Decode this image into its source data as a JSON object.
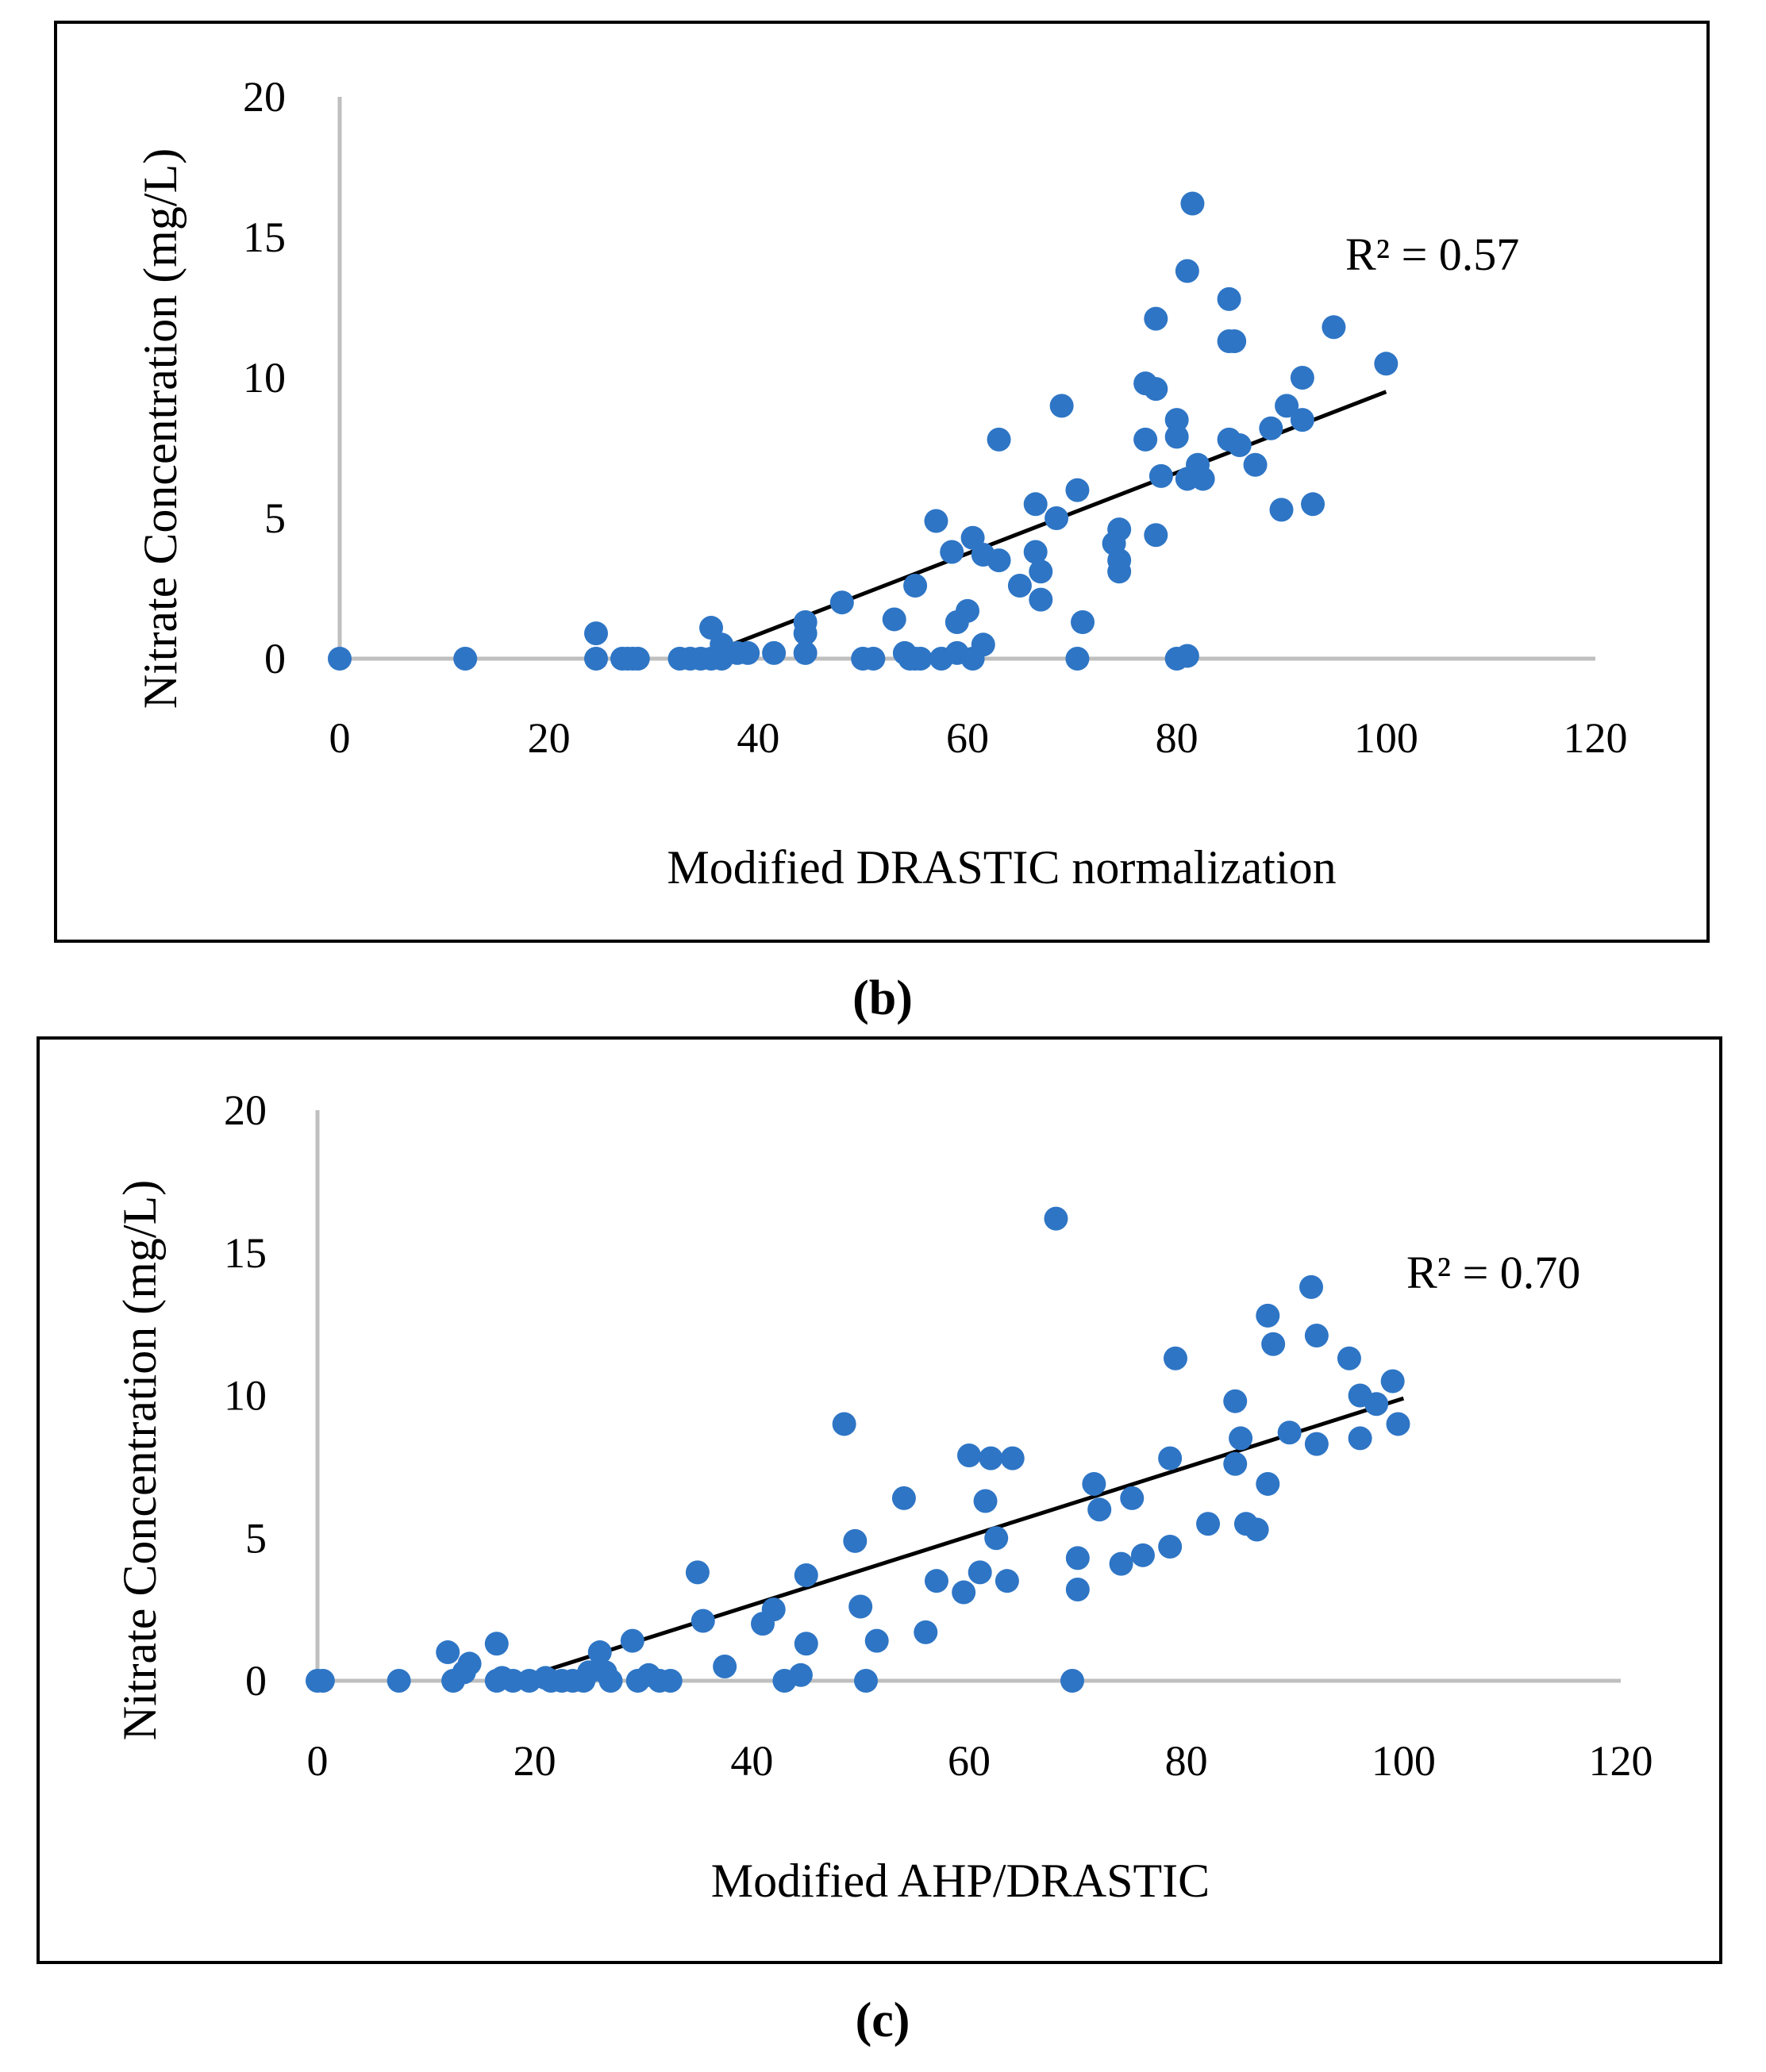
{
  "chart_data": [
    {
      "type": "scatter",
      "panel_label": "(b)",
      "xlabel": "Modified DRASTIC normalization",
      "ylabel": "Nitrate Concentration (mg/L)",
      "xlim": [
        0,
        120
      ],
      "ylim": [
        0,
        20
      ],
      "xticks": [
        0,
        20,
        40,
        60,
        80,
        100,
        120
      ],
      "yticks": [
        0,
        5,
        10,
        15,
        20
      ],
      "gridlines": false,
      "marker_color": "#2E75C5",
      "trendline": {
        "label": "R² = 0.57",
        "x": [
          34,
          100
        ],
        "y": [
          0.0,
          9.5
        ],
        "color": "#000000"
      },
      "points": [
        [
          0,
          0
        ],
        [
          12,
          0
        ],
        [
          24.5,
          0.9
        ],
        [
          24.5,
          0
        ],
        [
          27,
          0
        ],
        [
          27.5,
          0
        ],
        [
          28,
          0
        ],
        [
          28.5,
          0
        ],
        [
          32.5,
          0
        ],
        [
          33.5,
          0
        ],
        [
          34.5,
          0
        ],
        [
          35.5,
          1.1
        ],
        [
          35.5,
          0
        ],
        [
          36.5,
          0.5
        ],
        [
          36.5,
          0
        ],
        [
          37,
          0.2
        ],
        [
          38,
          0.2
        ],
        [
          39,
          0.2
        ],
        [
          41.5,
          0.2
        ],
        [
          44.5,
          1.3
        ],
        [
          44.5,
          0.9
        ],
        [
          44.5,
          0.2
        ],
        [
          48,
          2.0
        ],
        [
          50,
          0
        ],
        [
          51,
          0
        ],
        [
          53,
          1.4
        ],
        [
          54,
          0.2
        ],
        [
          54.5,
          0
        ],
        [
          55,
          0
        ],
        [
          55,
          2.6
        ],
        [
          55.5,
          0
        ],
        [
          57,
          4.9
        ],
        [
          57.5,
          0
        ],
        [
          58.5,
          3.8
        ],
        [
          59,
          1.3
        ],
        [
          59,
          0.2
        ],
        [
          60,
          1.7
        ],
        [
          60.5,
          0
        ],
        [
          60.5,
          4.3
        ],
        [
          61.5,
          3.7
        ],
        [
          61.5,
          0.5
        ],
        [
          63,
          7.8
        ],
        [
          63,
          3.5
        ],
        [
          65,
          2.6
        ],
        [
          66.5,
          5.5
        ],
        [
          66.5,
          3.8
        ],
        [
          67,
          2.1
        ],
        [
          67,
          3.1
        ],
        [
          68.5,
          5.0
        ],
        [
          69,
          9.0
        ],
        [
          70.5,
          6.0
        ],
        [
          70.5,
          0
        ],
        [
          71,
          1.3
        ],
        [
          74,
          4.1
        ],
        [
          74.5,
          4.6
        ],
        [
          74.5,
          3.5
        ],
        [
          74.5,
          3.1
        ],
        [
          77,
          9.8
        ],
        [
          77,
          7.8
        ],
        [
          78,
          12.1
        ],
        [
          78,
          9.6
        ],
        [
          78,
          4.4
        ],
        [
          78.5,
          6.5
        ],
        [
          80,
          8.5
        ],
        [
          80,
          7.9
        ],
        [
          80,
          0
        ],
        [
          81,
          13.8
        ],
        [
          81,
          6.4
        ],
        [
          81,
          0.1
        ],
        [
          81.5,
          16.2
        ],
        [
          82,
          6.9
        ],
        [
          82.5,
          6.4
        ],
        [
          85,
          12.8
        ],
        [
          85,
          11.3
        ],
        [
          85,
          7.8
        ],
        [
          85.5,
          11.3
        ],
        [
          86,
          7.6
        ],
        [
          87.5,
          6.9
        ],
        [
          89,
          8.2
        ],
        [
          90,
          5.3
        ],
        [
          90.5,
          9.0
        ],
        [
          92,
          10.0
        ],
        [
          92,
          8.5
        ],
        [
          93,
          5.5
        ],
        [
          95,
          11.8
        ],
        [
          100,
          10.5
        ]
      ]
    },
    {
      "type": "scatter",
      "panel_label": "(c)",
      "xlabel": "Modified AHP/DRASTIC",
      "ylabel": "Nitrate Concentration (mg/L)",
      "xlim": [
        0,
        120
      ],
      "ylim": [
        0,
        20
      ],
      "xticks": [
        0,
        20,
        40,
        60,
        80,
        100,
        120
      ],
      "yticks": [
        0,
        5,
        10,
        15,
        20
      ],
      "gridlines": false,
      "marker_color": "#2E75C5",
      "trendline": {
        "label": "R² = 0.70",
        "x": [
          18,
          100
        ],
        "y": [
          0.0,
          9.9
        ],
        "color": "#000000"
      },
      "points": [
        [
          0,
          0
        ],
        [
          0.5,
          0
        ],
        [
          7.5,
          0
        ],
        [
          12,
          1.0
        ],
        [
          12.5,
          0
        ],
        [
          13.5,
          0.3
        ],
        [
          14,
          0.6
        ],
        [
          16.5,
          1.3
        ],
        [
          16.5,
          0
        ],
        [
          17,
          0.1
        ],
        [
          18,
          0
        ],
        [
          19.5,
          0
        ],
        [
          21,
          0.1
        ],
        [
          21.5,
          0
        ],
        [
          22.5,
          0
        ],
        [
          23.5,
          0
        ],
        [
          24.5,
          0
        ],
        [
          25,
          0.3
        ],
        [
          26,
          1.0
        ],
        [
          26.5,
          0.3
        ],
        [
          27,
          0
        ],
        [
          29,
          1.4
        ],
        [
          29.5,
          0
        ],
        [
          30.5,
          0.2
        ],
        [
          31.5,
          0
        ],
        [
          32.5,
          0
        ],
        [
          35,
          3.8
        ],
        [
          35.5,
          2.1
        ],
        [
          37.5,
          0.5
        ],
        [
          41,
          2.0
        ],
        [
          42,
          2.5
        ],
        [
          43,
          0
        ],
        [
          44.5,
          0.2
        ],
        [
          45,
          1.3
        ],
        [
          45,
          3.7
        ],
        [
          48.5,
          9.0
        ],
        [
          49.5,
          4.9
        ],
        [
          50,
          2.6
        ],
        [
          50.5,
          0
        ],
        [
          51.5,
          1.4
        ],
        [
          54,
          6.4
        ],
        [
          56,
          1.7
        ],
        [
          57,
          3.5
        ],
        [
          59.5,
          3.1
        ],
        [
          60,
          7.9
        ],
        [
          61,
          3.8
        ],
        [
          61.5,
          6.3
        ],
        [
          62,
          7.8
        ],
        [
          62.5,
          5.0
        ],
        [
          63.5,
          3.5
        ],
        [
          64,
          7.8
        ],
        [
          68,
          16.2
        ],
        [
          69.5,
          0
        ],
        [
          70,
          4.3
        ],
        [
          70,
          3.2
        ],
        [
          71.5,
          6.9
        ],
        [
          72,
          6.0
        ],
        [
          74,
          4.1
        ],
        [
          75,
          6.4
        ],
        [
          76,
          4.4
        ],
        [
          78.5,
          4.7
        ],
        [
          78.5,
          7.8
        ],
        [
          79,
          11.3
        ],
        [
          82,
          5.5
        ],
        [
          84.5,
          9.8
        ],
        [
          84.5,
          7.6
        ],
        [
          85,
          8.5
        ],
        [
          85.5,
          5.5
        ],
        [
          86.5,
          5.3
        ],
        [
          87.5,
          12.8
        ],
        [
          87.5,
          6.9
        ],
        [
          88,
          11.8
        ],
        [
          89.5,
          8.7
        ],
        [
          91.5,
          13.8
        ],
        [
          92,
          12.1
        ],
        [
          92,
          8.3
        ],
        [
          95,
          11.3
        ],
        [
          96,
          10.0
        ],
        [
          96,
          8.5
        ],
        [
          97.5,
          9.7
        ],
        [
          99,
          10.5
        ],
        [
          99.5,
          9.0
        ]
      ]
    }
  ]
}
